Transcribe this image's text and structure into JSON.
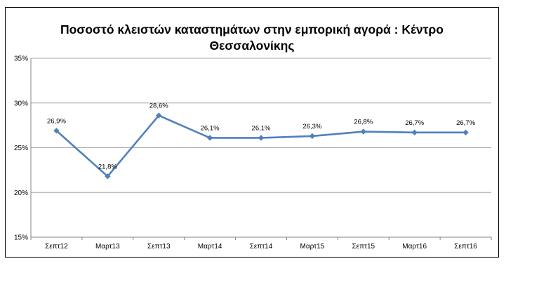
{
  "chart_data": {
    "type": "line",
    "title": "Ποσοστό κλειστών καταστημάτων στην εμπορική αγορά : Κέντρο Θεσσαλονίκης",
    "title_lines": [
      "Ποσοστό κλειστών καταστημάτων στην εμπορική αγορά : Κέντρο",
      "Θεσσαλονίκης"
    ],
    "xlabel": "",
    "ylabel": "",
    "categories": [
      "Σεπτ12",
      "Μαρτ13",
      "Σεπτ13",
      "Μαρτ14",
      "Σεπτ14",
      "Μαρτ15",
      "Σεπτ15",
      "Μαρτ16",
      "Σεπτ16"
    ],
    "series": [
      {
        "values": [
          26.9,
          21.8,
          28.6,
          26.1,
          26.1,
          26.3,
          26.8,
          26.7,
          26.7
        ],
        "labels": [
          "26,9%",
          "21,8%",
          "28,6%",
          "26,1%",
          "26,1%",
          "26,3%",
          "26,8%",
          "26,7%",
          "26,7%"
        ],
        "color": "#4f81bd"
      }
    ],
    "ylim": [
      15,
      35
    ],
    "yticks": [
      15,
      20,
      25,
      30,
      35
    ],
    "ytick_labels": [
      "15%",
      "20%",
      "25%",
      "30%",
      "35%"
    ],
    "grid": true,
    "legend": "none",
    "colors": {
      "line": "#4f81bd",
      "grid": "#a6a6a6",
      "axis": "#868686"
    }
  }
}
